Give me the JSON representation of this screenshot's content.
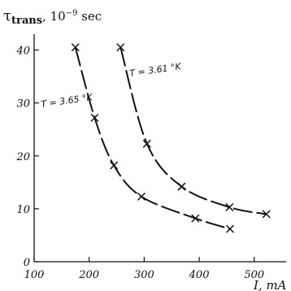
{
  "chart_data": {
    "type": "line",
    "ylabel_symbol": "τ",
    "ylabel_subscript": "trans",
    "ylabel_unit": ", 10",
    "ylabel_exponent": "−9",
    "ylabel_unit_tail": " sec",
    "xlabel": "I, mA",
    "x_ticks": [
      "100",
      "200",
      "300",
      "400",
      "500"
    ],
    "y_ticks": [
      "0",
      "10",
      "20",
      "30",
      "40"
    ],
    "xlim": [
      100,
      560
    ],
    "ylim": [
      0,
      43
    ],
    "grid": false,
    "series": [
      {
        "name": "T = 3.61 °K",
        "x": [
          257,
          305,
          368,
          455,
          522
        ],
        "y": [
          40.5,
          22.3,
          14.2,
          10.3,
          9.0
        ]
      },
      {
        "name": "T = 3.65 °K",
        "x": [
          175,
          210,
          245,
          295,
          393,
          456
        ],
        "y": [
          40.5,
          27.2,
          18.2,
          12.3,
          8.2,
          6.2
        ]
      }
    ],
    "labels": {
      "s0": "T = 3.61 °K",
      "s1": "T = 3.65 °K"
    }
  }
}
